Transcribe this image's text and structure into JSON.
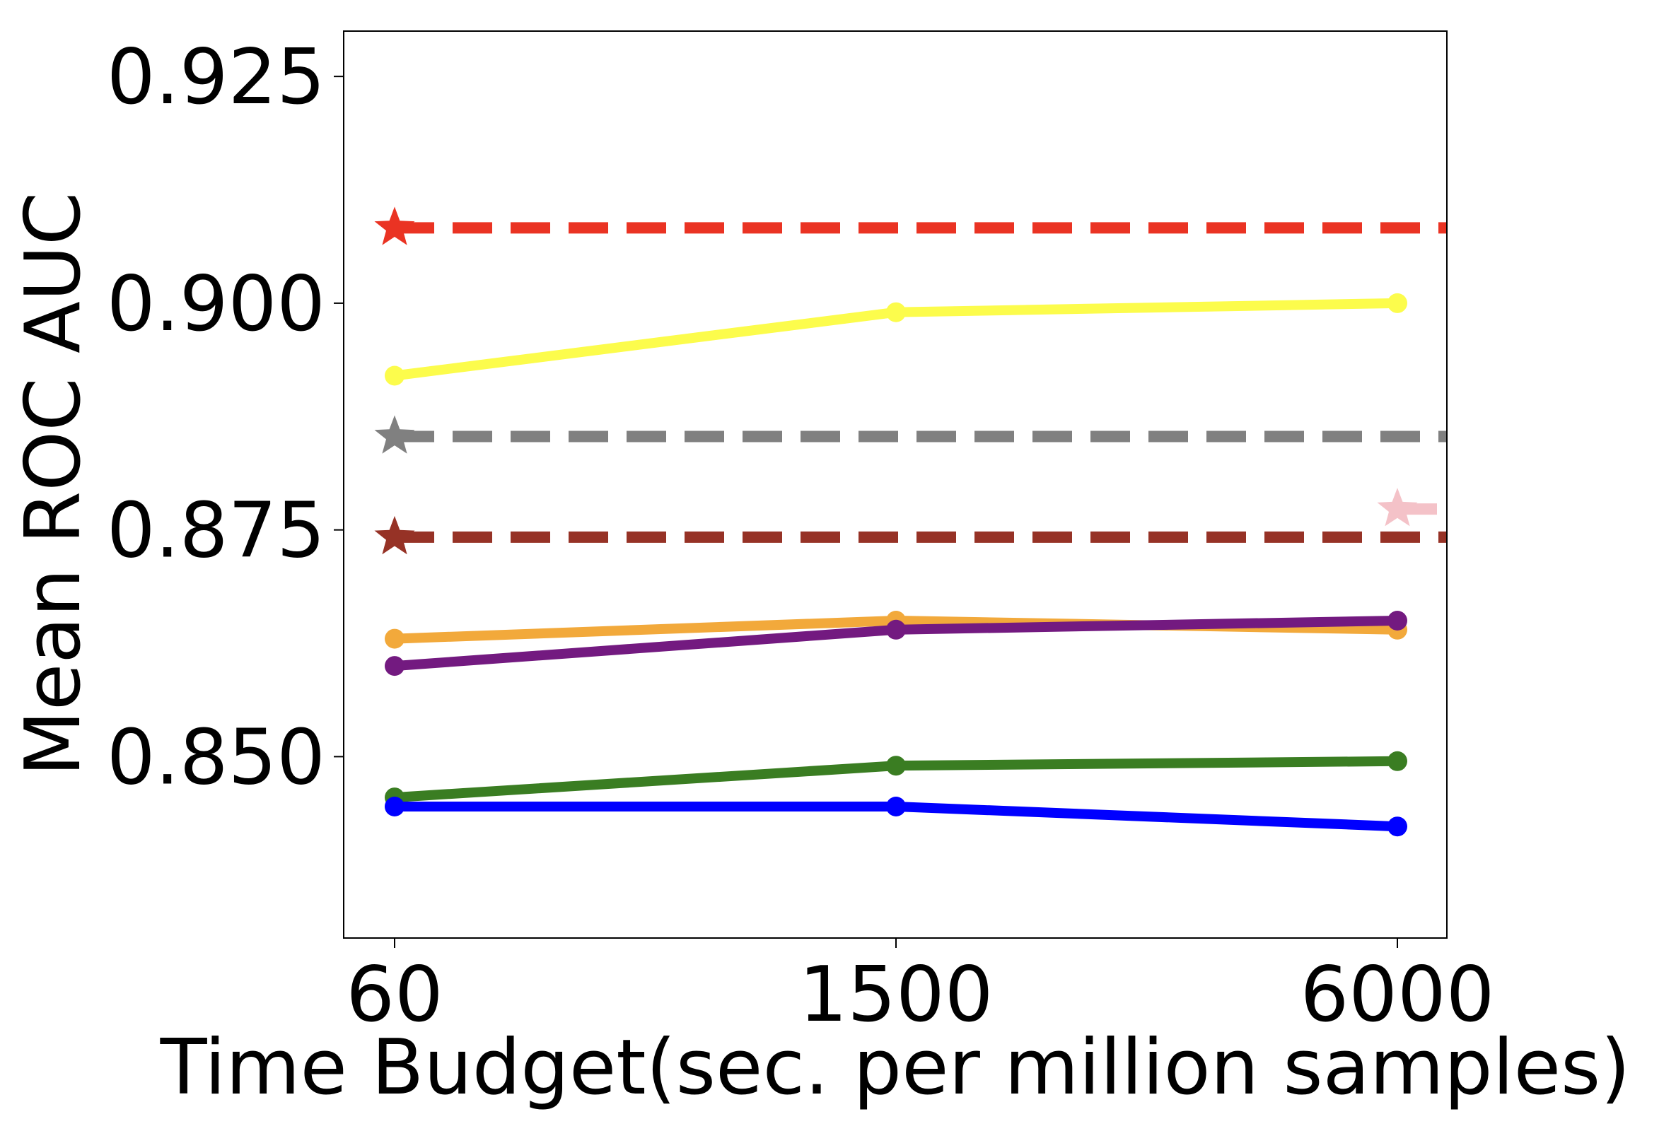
{
  "chart_data": {
    "type": "line",
    "xlabel": "Time Budget(sec. per million samples)",
    "ylabel": "Mean ROC AUC",
    "x_ticks": [
      "60",
      "1500",
      "6000"
    ],
    "y_ticks": [
      "0.850",
      "0.875",
      "0.900",
      "0.925"
    ],
    "ylim": [
      0.83,
      0.93
    ],
    "x_categories": [
      "60",
      "1500",
      "6000"
    ],
    "grid": false,
    "legend": "none",
    "series": [
      {
        "color": "#fcfc4c",
        "style": "solid",
        "marker": "circle",
        "values": [
          0.892,
          0.899,
          0.9
        ]
      },
      {
        "color": "#f2a93b",
        "style": "solid",
        "marker": "circle",
        "values": [
          0.863,
          0.865,
          0.864
        ]
      },
      {
        "color": "#731a80",
        "style": "solid",
        "marker": "circle",
        "values": [
          0.86,
          0.864,
          0.865
        ]
      },
      {
        "color": "#3a7d22",
        "style": "solid",
        "marker": "circle",
        "values": [
          0.8455,
          0.849,
          0.8495
        ]
      },
      {
        "color": "#0000ff",
        "style": "solid",
        "marker": "circle",
        "values": [
          0.8445,
          0.8445,
          0.8423
        ]
      }
    ],
    "reference_lines": [
      {
        "color": "#ea3323",
        "style": "dashed",
        "marker": "star",
        "value": 0.9083,
        "marker_at": "60"
      },
      {
        "color": "#808080",
        "style": "dashed",
        "marker": "star",
        "value": 0.8853,
        "marker_at": "60"
      },
      {
        "color": "#963226",
        "style": "dashed",
        "marker": "star",
        "value": 0.8742,
        "marker_at": "60"
      },
      {
        "color": "#f4c2c8",
        "style": "dashed",
        "marker": "star",
        "value": 0.8773,
        "marker_at": "6000"
      }
    ]
  }
}
